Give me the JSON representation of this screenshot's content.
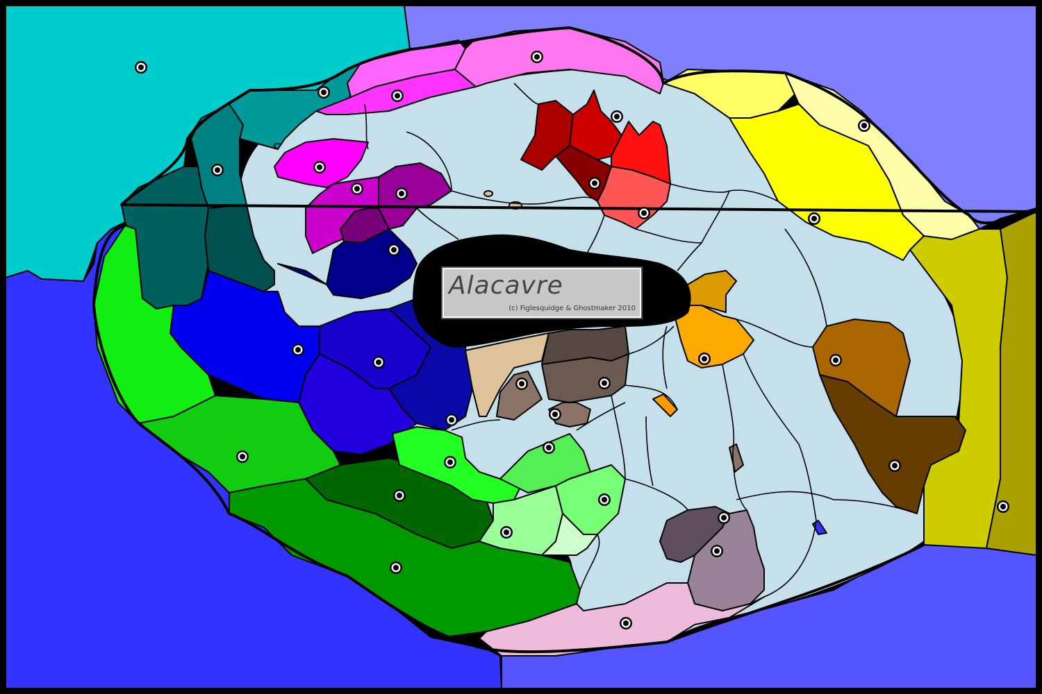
{
  "map": {
    "name": "Alacavre",
    "credit": "(c) Figlesquidge & Ghostmaker 2010"
  },
  "colors": {
    "border": "#000000",
    "sea_northwest": "#00cccc",
    "sea_north": "#8080ff",
    "sea_west": "#3333ff",
    "sea_south": "#5555ff",
    "neutral_land": "#c5e0ea",
    "central_lake": "#000000",
    "title_box": "#c8c8c8"
  },
  "supply_centers": [
    {
      "id": "sc-1"
    },
    {
      "id": "sc-2"
    },
    {
      "id": "sc-3"
    },
    {
      "id": "sc-4"
    },
    {
      "id": "sc-5"
    },
    {
      "id": "sc-6"
    },
    {
      "id": "sc-7"
    },
    {
      "id": "sc-8"
    },
    {
      "id": "sc-9"
    },
    {
      "id": "sc-10"
    },
    {
      "id": "sc-11"
    },
    {
      "id": "sc-12"
    },
    {
      "id": "sc-13"
    },
    {
      "id": "sc-14"
    },
    {
      "id": "sc-15"
    },
    {
      "id": "sc-16"
    },
    {
      "id": "sc-17"
    },
    {
      "id": "sc-18"
    },
    {
      "id": "sc-19"
    },
    {
      "id": "sc-20"
    },
    {
      "id": "sc-21"
    },
    {
      "id": "sc-22"
    },
    {
      "id": "sc-23"
    },
    {
      "id": "sc-24"
    },
    {
      "id": "sc-25"
    },
    {
      "id": "sc-26"
    },
    {
      "id": "sc-27"
    },
    {
      "id": "sc-28"
    },
    {
      "id": "sc-29"
    },
    {
      "id": "sc-30"
    },
    {
      "id": "sc-31"
    },
    {
      "id": "sc-32"
    },
    {
      "id": "sc-33"
    },
    {
      "id": "sc-34"
    },
    {
      "id": "sc-35"
    },
    {
      "id": "sc-36"
    },
    {
      "id": "sc-37"
    }
  ]
}
